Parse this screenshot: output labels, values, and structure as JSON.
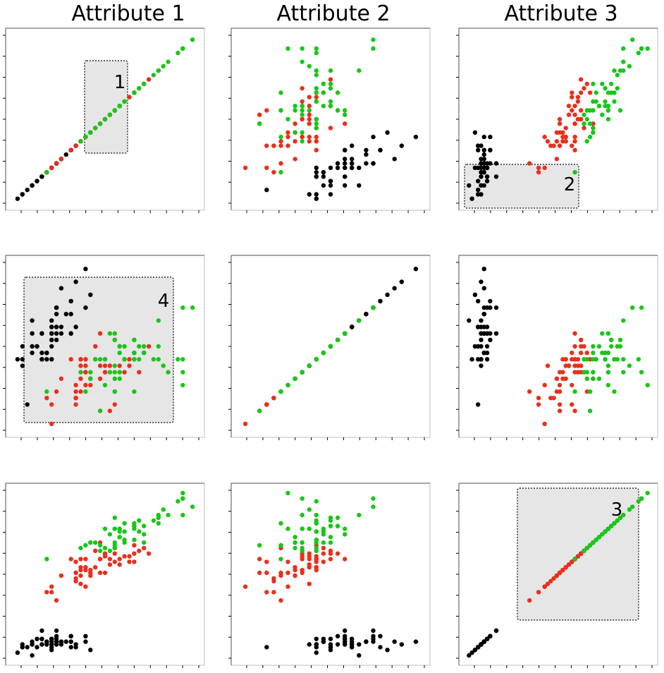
{
  "colors": {
    "class_a": "#000000",
    "class_b": "#e8301c",
    "class_c": "#19c619",
    "selection_fill": "#e6e6e6",
    "frame": "#4d4d4d"
  },
  "column_titles": [
    "Attribute 1",
    "Attribute 2",
    "Attribute 3"
  ],
  "chart_data": {
    "type": "scatter",
    "layout": "scatterplot-matrix",
    "attributes": [
      "Attribute 1",
      "Attribute 2",
      "Attribute 3"
    ],
    "series": [
      {
        "name": "",
        "color": "#000000",
        "points": [
          [
            5.1,
            3.5,
            1.4
          ],
          [
            4.9,
            3.0,
            1.4
          ],
          [
            4.7,
            3.2,
            1.3
          ],
          [
            4.6,
            3.1,
            1.5
          ],
          [
            5.0,
            3.6,
            1.4
          ],
          [
            5.4,
            3.9,
            1.7
          ],
          [
            4.6,
            3.4,
            1.4
          ],
          [
            5.0,
            3.4,
            1.5
          ],
          [
            4.4,
            2.9,
            1.4
          ],
          [
            4.9,
            3.1,
            1.5
          ],
          [
            5.4,
            3.7,
            1.5
          ],
          [
            4.8,
            3.4,
            1.6
          ],
          [
            4.8,
            3.0,
            1.4
          ],
          [
            4.3,
            3.0,
            1.1
          ],
          [
            5.8,
            4.0,
            1.2
          ],
          [
            5.7,
            4.4,
            1.5
          ],
          [
            5.4,
            3.9,
            1.3
          ],
          [
            5.1,
            3.5,
            1.4
          ],
          [
            5.7,
            3.8,
            1.7
          ],
          [
            5.1,
            3.8,
            1.5
          ],
          [
            5.4,
            3.4,
            1.7
          ],
          [
            5.1,
            3.7,
            1.5
          ],
          [
            4.6,
            3.6,
            1.0
          ],
          [
            5.1,
            3.3,
            1.7
          ],
          [
            4.8,
            3.4,
            1.9
          ],
          [
            5.0,
            3.0,
            1.6
          ],
          [
            5.0,
            3.4,
            1.6
          ],
          [
            5.2,
            3.5,
            1.5
          ],
          [
            5.2,
            3.4,
            1.4
          ],
          [
            4.7,
            3.2,
            1.6
          ],
          [
            4.8,
            3.1,
            1.6
          ],
          [
            5.4,
            3.4,
            1.5
          ],
          [
            5.2,
            4.1,
            1.5
          ],
          [
            5.5,
            4.2,
            1.4
          ],
          [
            4.9,
            3.1,
            1.5
          ],
          [
            5.0,
            3.2,
            1.2
          ],
          [
            5.5,
            3.5,
            1.3
          ],
          [
            4.4,
            3.0,
            1.3
          ],
          [
            5.1,
            3.4,
            1.5
          ],
          [
            5.0,
            3.5,
            1.3
          ],
          [
            4.5,
            2.3,
            1.3
          ],
          [
            4.4,
            3.2,
            1.3
          ],
          [
            5.0,
            3.5,
            1.6
          ],
          [
            5.1,
            3.8,
            1.9
          ],
          [
            4.8,
            3.0,
            1.4
          ],
          [
            5.1,
            3.8,
            1.6
          ],
          [
            4.6,
            3.2,
            1.4
          ],
          [
            5.3,
            3.7,
            1.5
          ],
          [
            5.0,
            3.3,
            1.4
          ]
        ]
      },
      {
        "name": "",
        "color": "#e8301c",
        "points": [
          [
            7.0,
            3.2,
            4.7
          ],
          [
            6.4,
            3.2,
            4.5
          ],
          [
            6.9,
            3.1,
            4.9
          ],
          [
            5.5,
            2.3,
            4.0
          ],
          [
            6.5,
            2.8,
            4.6
          ],
          [
            5.7,
            2.8,
            4.5
          ],
          [
            6.3,
            3.3,
            4.7
          ],
          [
            4.9,
            2.4,
            3.3
          ],
          [
            6.6,
            2.9,
            4.6
          ],
          [
            5.2,
            2.7,
            3.9
          ],
          [
            5.0,
            2.0,
            3.5
          ],
          [
            5.9,
            3.0,
            4.2
          ],
          [
            6.0,
            2.2,
            4.0
          ],
          [
            6.1,
            2.9,
            4.7
          ],
          [
            5.6,
            2.9,
            3.6
          ],
          [
            6.7,
            3.1,
            4.4
          ],
          [
            5.6,
            3.0,
            4.5
          ],
          [
            5.8,
            2.7,
            4.1
          ],
          [
            6.2,
            2.2,
            4.5
          ],
          [
            5.6,
            2.5,
            3.9
          ],
          [
            5.9,
            3.2,
            4.8
          ],
          [
            6.1,
            2.8,
            4.0
          ],
          [
            6.3,
            2.5,
            4.9
          ],
          [
            6.1,
            2.8,
            4.7
          ],
          [
            6.4,
            2.9,
            4.3
          ],
          [
            6.6,
            3.0,
            4.4
          ],
          [
            6.8,
            2.8,
            4.8
          ],
          [
            6.7,
            3.0,
            5.0
          ],
          [
            6.0,
            2.9,
            4.5
          ],
          [
            5.7,
            2.6,
            3.5
          ],
          [
            5.5,
            2.4,
            3.8
          ],
          [
            5.5,
            2.4,
            3.7
          ],
          [
            5.8,
            2.7,
            3.9
          ],
          [
            6.0,
            2.7,
            5.1
          ],
          [
            5.4,
            3.0,
            4.5
          ],
          [
            6.0,
            3.4,
            4.5
          ],
          [
            6.7,
            3.1,
            4.7
          ],
          [
            6.3,
            2.3,
            4.4
          ],
          [
            5.6,
            3.0,
            4.1
          ],
          [
            5.5,
            2.5,
            4.0
          ],
          [
            5.5,
            2.6,
            4.4
          ],
          [
            6.1,
            3.0,
            4.6
          ],
          [
            5.8,
            2.6,
            4.0
          ],
          [
            5.0,
            2.3,
            3.3
          ],
          [
            5.6,
            2.7,
            4.2
          ],
          [
            5.7,
            3.0,
            4.2
          ],
          [
            5.7,
            2.9,
            4.2
          ],
          [
            6.2,
            2.9,
            4.3
          ],
          [
            5.1,
            2.5,
            3.0
          ],
          [
            5.7,
            2.8,
            4.1
          ]
        ]
      },
      {
        "name": "",
        "color": "#19c619",
        "points": [
          [
            6.3,
            3.3,
            6.0
          ],
          [
            5.8,
            2.7,
            5.1
          ],
          [
            7.1,
            3.0,
            5.9
          ],
          [
            6.3,
            2.9,
            5.6
          ],
          [
            6.5,
            3.0,
            5.8
          ],
          [
            7.6,
            3.0,
            6.6
          ],
          [
            4.9,
            2.5,
            4.5
          ],
          [
            7.3,
            2.9,
            6.3
          ],
          [
            6.7,
            2.5,
            5.8
          ],
          [
            7.2,
            3.6,
            6.1
          ],
          [
            6.5,
            3.2,
            5.1
          ],
          [
            6.4,
            2.7,
            5.3
          ],
          [
            6.8,
            3.0,
            5.5
          ],
          [
            5.7,
            2.5,
            5.0
          ],
          [
            5.8,
            2.8,
            5.1
          ],
          [
            6.4,
            3.2,
            5.3
          ],
          [
            6.5,
            3.0,
            5.5
          ],
          [
            7.7,
            3.8,
            6.7
          ],
          [
            7.7,
            2.6,
            6.9
          ],
          [
            6.0,
            2.2,
            5.0
          ],
          [
            6.9,
            3.2,
            5.7
          ],
          [
            5.6,
            2.8,
            4.9
          ],
          [
            7.7,
            2.8,
            6.7
          ],
          [
            6.3,
            2.7,
            4.9
          ],
          [
            6.7,
            3.3,
            5.7
          ],
          [
            7.2,
            3.2,
            6.0
          ],
          [
            6.2,
            2.8,
            4.8
          ],
          [
            6.1,
            3.0,
            4.9
          ],
          [
            6.4,
            2.8,
            5.6
          ],
          [
            7.2,
            3.0,
            5.8
          ],
          [
            7.4,
            2.8,
            6.1
          ],
          [
            7.9,
            3.8,
            6.4
          ],
          [
            6.4,
            2.8,
            5.6
          ],
          [
            6.3,
            2.8,
            5.1
          ],
          [
            6.1,
            2.6,
            5.6
          ],
          [
            7.7,
            3.0,
            6.1
          ],
          [
            6.3,
            3.4,
            5.6
          ],
          [
            6.4,
            3.1,
            5.5
          ],
          [
            6.0,
            3.0,
            4.8
          ],
          [
            6.9,
            3.1,
            5.4
          ],
          [
            6.7,
            3.1,
            5.6
          ],
          [
            6.9,
            3.1,
            5.1
          ],
          [
            6.8,
            3.2,
            5.9
          ],
          [
            6.7,
            3.3,
            5.7
          ],
          [
            6.7,
            3.0,
            5.2
          ],
          [
            6.3,
            2.5,
            5.0
          ],
          [
            6.5,
            3.0,
            5.2
          ],
          [
            6.2,
            3.4,
            5.4
          ],
          [
            5.9,
            3.0,
            5.1
          ]
        ]
      }
    ],
    "attribute_ranges": [
      [
        4.2,
        8.0
      ],
      [
        1.9,
        4.5
      ],
      [
        0.9,
        7.0
      ]
    ],
    "annotations": [
      {
        "label": "1",
        "row": 0,
        "col": 0
      },
      {
        "label": "2",
        "row": 0,
        "col": 2
      },
      {
        "label": "3",
        "row": 2,
        "col": 2
      },
      {
        "label": "4",
        "row": 1,
        "col": 0
      }
    ],
    "grid": false,
    "legend": "none"
  }
}
